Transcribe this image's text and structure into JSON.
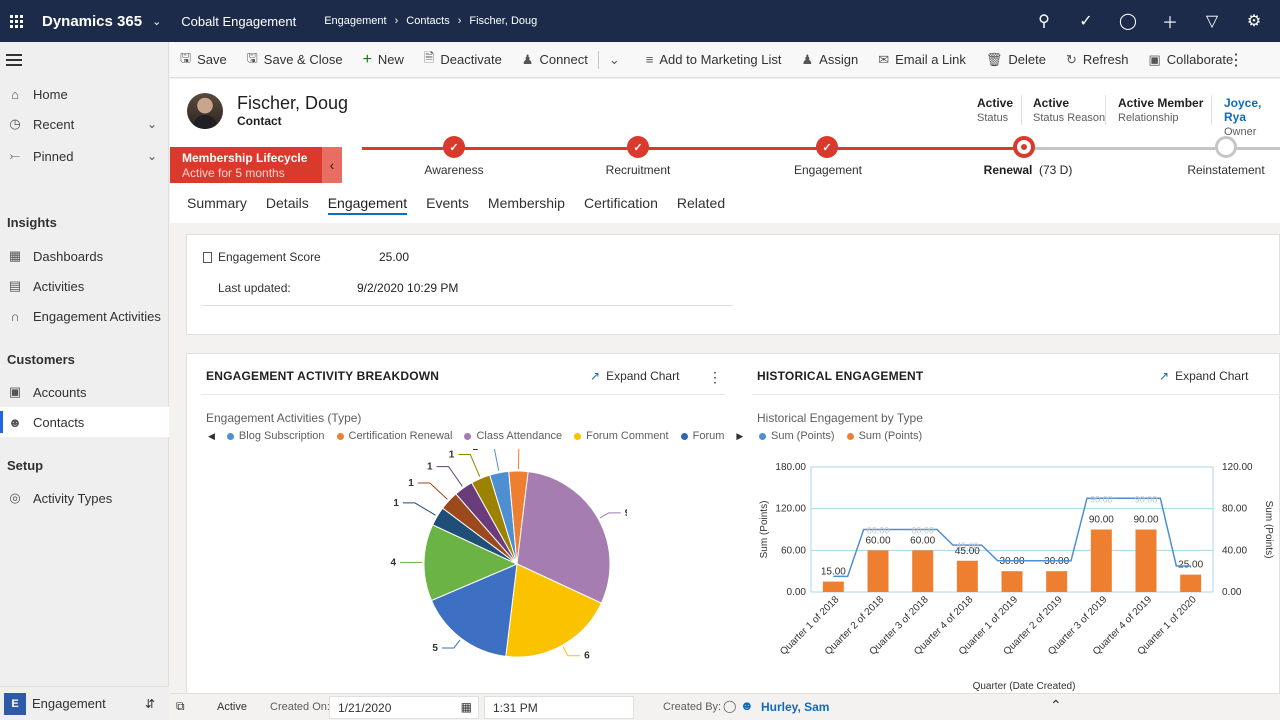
{
  "topbar": {
    "app_name": "Dynamics 365",
    "app_module": "Cobalt Engagement",
    "breadcrumbs": [
      "Engagement",
      "Contacts",
      "Fischer, Doug"
    ],
    "icons": [
      "search-icon",
      "task-icon",
      "lightbulb-icon",
      "plus-icon",
      "filter-icon",
      "settings-icon"
    ]
  },
  "nav": {
    "items": [
      {
        "label": "Home",
        "icon": "home-icon"
      },
      {
        "label": "Recent",
        "icon": "clock-icon"
      },
      {
        "label": "Pinned",
        "icon": "pin-icon"
      }
    ],
    "groups": [
      {
        "header": "Insights",
        "items": [
          "Dashboards",
          "Activities",
          "Engagement Activities"
        ]
      },
      {
        "header": "Customers",
        "items": [
          "Accounts",
          "Contacts"
        ]
      },
      {
        "header": "Setup",
        "items": [
          "Activity Types"
        ]
      }
    ],
    "active": "Contacts",
    "area_badge": "E",
    "area_label": "Engagement"
  },
  "commands": [
    "Save",
    "Save & Close",
    "New",
    "Deactivate",
    "Connect",
    "Add to Marketing List",
    "Assign",
    "Email a Link",
    "Delete",
    "Refresh",
    "Collaborate"
  ],
  "record": {
    "name": "Fischer, Doug",
    "type": "Contact",
    "fields": [
      {
        "value": "Active",
        "label": "Status"
      },
      {
        "value": "Active",
        "label": "Status Reason"
      },
      {
        "value": "Active Member",
        "label": "Relationship"
      },
      {
        "value": "Joyce, Rya",
        "label": "Owner"
      }
    ]
  },
  "bpf": {
    "name": "Membership Lifecycle",
    "duration": "Active for 5 months",
    "stages": [
      {
        "label": "Awareness",
        "state": "done"
      },
      {
        "label": "Recruitment",
        "state": "done"
      },
      {
        "label": "Engagement",
        "state": "done"
      },
      {
        "label": "Renewal",
        "state": "current",
        "extra": "(73 D)"
      },
      {
        "label": "Reinstatement",
        "state": "future"
      }
    ]
  },
  "tabs": [
    "Summary",
    "Details",
    "Engagement",
    "Events",
    "Membership",
    "Certification",
    "Related"
  ],
  "active_tab": "Engagement",
  "engagement": {
    "score_label": "Engagement Score",
    "score_value": "25.00",
    "updated_label": "Last updated:",
    "updated_value": "9/2/2020 10:29 PM"
  },
  "charts": {
    "expand_label": "Expand Chart",
    "breakdown_title": "ENGAGEMENT ACTIVITY BREAKDOWN",
    "historical_title": "HISTORICAL ENGAGEMENT"
  },
  "chart_data": [
    {
      "type": "pie",
      "title": "Engagement Activities (Type)",
      "legend": [
        {
          "name": "Blog Subscription",
          "color": "#4e8fd1"
        },
        {
          "name": "Certification Renewal",
          "color": "#ef7f30"
        },
        {
          "name": "Class Attendance",
          "color": "#a57db0"
        },
        {
          "name": "Forum Comment",
          "color": "#fbc200"
        },
        {
          "name": "Forum",
          "color": "#2e67b0"
        }
      ],
      "slices": [
        {
          "value": 1,
          "color": "#4e8fd1"
        },
        {
          "value": 1,
          "color": "#ef7f30"
        },
        {
          "value": 9,
          "color": "#a57db0"
        },
        {
          "value": 6,
          "color": "#fbc200"
        },
        {
          "value": 5,
          "color": "#3d6fc2"
        },
        {
          "value": 4,
          "color": "#6ab344"
        },
        {
          "value": 1,
          "color": "#1f4e79"
        },
        {
          "value": 1,
          "color": "#9a4a1c"
        },
        {
          "value": 1,
          "color": "#6b3c7c"
        },
        {
          "value": 1,
          "color": "#9c8200"
        }
      ]
    },
    {
      "type": "bar",
      "title": "Historical Engagement by Type",
      "xlabel": "Quarter (Date Created)",
      "ylabel": "Sum (Points)",
      "categories": [
        "Quarter 1 of 2018",
        "Quarter 2 of 2018",
        "Quarter 3 of 2018",
        "Quarter 4 of 2018",
        "Quarter 1 of 2019",
        "Quarter 2 of 2019",
        "Quarter 3 of 2019",
        "Quarter 4 of 2019",
        "Quarter 1 of 2020"
      ],
      "series": [
        {
          "name": "Sum (Points)",
          "kind": "line",
          "axis": "right",
          "color": "#4e8fd1",
          "values": [
            15,
            60,
            60,
            45,
            30,
            30,
            90,
            90,
            25
          ]
        },
        {
          "name": "Sum (Points)",
          "kind": "bar",
          "axis": "left",
          "color": "#ef7f30",
          "values": [
            15,
            60,
            60,
            45,
            30,
            30,
            90,
            90,
            25
          ]
        }
      ],
      "bar_labels": [
        "15.00",
        "60.00",
        "60.00",
        "45.00",
        "30.00",
        "30.00",
        "90.00",
        "90.00",
        "25.00"
      ],
      "ylim_left": [
        0,
        180
      ],
      "ylim_right": [
        0,
        120
      ],
      "left_ticks": [
        "0.00",
        "60.00",
        "120.00",
        "180.00"
      ],
      "right_ticks": [
        "0.00",
        "40.00",
        "80.00",
        "120.00"
      ]
    }
  ],
  "statusbar": {
    "state": "Active",
    "created_on_label": "Created On:",
    "created_on_date": "1/21/2020",
    "created_on_time": "1:31 PM",
    "created_by_label": "Created By:",
    "created_by": "Hurley, Sam"
  }
}
